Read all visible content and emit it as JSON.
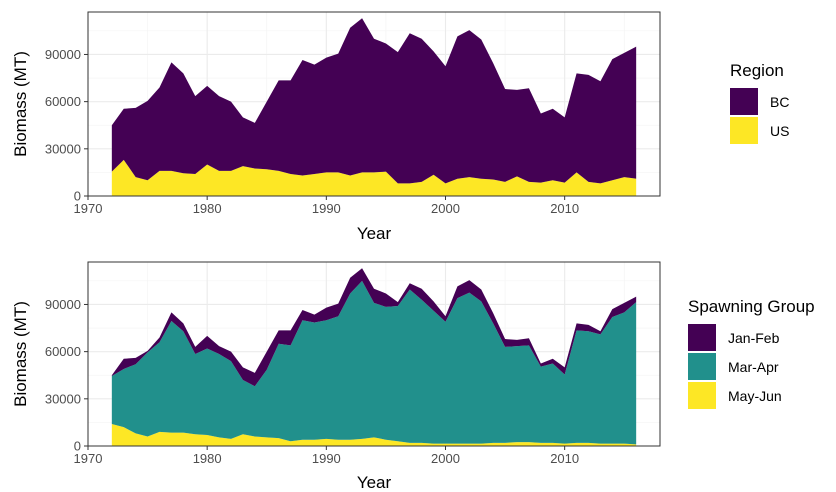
{
  "chart_data": [
    {
      "type": "area",
      "stacked": true,
      "xlabel": "Year",
      "ylabel": "Biomass (MT)",
      "xlim": [
        1970,
        2018
      ],
      "ylim": [
        0,
        117000
      ],
      "x_ticks": [
        1970,
        1980,
        1990,
        2000,
        2010
      ],
      "y_ticks": [
        0,
        30000,
        60000,
        90000
      ],
      "grid": true,
      "legend": {
        "title": "Region",
        "position": "right"
      },
      "x": [
        1972,
        1973,
        1974,
        1975,
        1976,
        1977,
        1978,
        1979,
        1980,
        1981,
        1982,
        1983,
        1984,
        1985,
        1986,
        1987,
        1988,
        1989,
        1990,
        1991,
        1992,
        1993,
        1994,
        1995,
        1996,
        1997,
        1998,
        1999,
        2000,
        2001,
        2002,
        2003,
        2004,
        2005,
        2006,
        2007,
        2008,
        2009,
        2010,
        2011,
        2012,
        2013,
        2014,
        2015,
        2016
      ],
      "series": [
        {
          "name": "US",
          "color": "#FDE725",
          "values": [
            15500,
            23000,
            12000,
            10000,
            16000,
            16000,
            14500,
            14000,
            20000,
            16000,
            16000,
            19000,
            17500,
            17000,
            16000,
            14000,
            13000,
            14000,
            15000,
            15000,
            13000,
            15000,
            15000,
            15500,
            8000,
            8000,
            9000,
            13500,
            8000,
            11000,
            12000,
            11000,
            10500,
            9000,
            12500,
            9000,
            8500,
            10000,
            8500,
            15000,
            9000,
            8000,
            10000,
            12000,
            11000
          ]
        },
        {
          "name": "BC",
          "color": "#440154",
          "values": [
            29500,
            32500,
            44000,
            50500,
            53000,
            69000,
            63500,
            49500,
            50000,
            47500,
            44000,
            31000,
            29000,
            43000,
            57500,
            59500,
            73500,
            69500,
            73000,
            75500,
            94000,
            98000,
            85000,
            81500,
            83500,
            95500,
            91000,
            78500,
            74500,
            90500,
            93500,
            88500,
            74000,
            59000,
            55000,
            59500,
            44000,
            45500,
            41500,
            63000,
            68000,
            65000,
            77000,
            79000,
            84000
          ]
        }
      ]
    },
    {
      "type": "area",
      "stacked": true,
      "xlabel": "Year",
      "ylabel": "Biomass (MT)",
      "xlim": [
        1970,
        2018
      ],
      "ylim": [
        0,
        117000
      ],
      "x_ticks": [
        1970,
        1980,
        1990,
        2000,
        2010
      ],
      "y_ticks": [
        0,
        30000,
        60000,
        90000
      ],
      "grid": true,
      "legend": {
        "title": "Spawning Group",
        "position": "right"
      },
      "x": [
        1972,
        1973,
        1974,
        1975,
        1976,
        1977,
        1978,
        1979,
        1980,
        1981,
        1982,
        1983,
        1984,
        1985,
        1986,
        1987,
        1988,
        1989,
        1990,
        1991,
        1992,
        1993,
        1994,
        1995,
        1996,
        1997,
        1998,
        1999,
        2000,
        2001,
        2002,
        2003,
        2004,
        2005,
        2006,
        2007,
        2008,
        2009,
        2010,
        2011,
        2012,
        2013,
        2014,
        2015,
        2016
      ],
      "series": [
        {
          "name": "May-Jun",
          "color": "#FDE725",
          "values": [
            14000,
            12000,
            8000,
            6000,
            9000,
            8500,
            8500,
            7500,
            7000,
            5500,
            4500,
            7500,
            6000,
            5500,
            5000,
            3000,
            4000,
            4000,
            4500,
            4000,
            4000,
            4500,
            5500,
            4000,
            3000,
            2000,
            2000,
            1500,
            1500,
            1500,
            1500,
            1500,
            2000,
            2000,
            2500,
            2500,
            2000,
            2000,
            1500,
            2000,
            2000,
            1500,
            1500,
            1500,
            1000
          ]
        },
        {
          "name": "Mar-Apr",
          "color": "#21908C",
          "values": [
            30500,
            37000,
            44000,
            53500,
            57000,
            71000,
            64500,
            51000,
            55000,
            53000,
            49500,
            34500,
            32000,
            43000,
            60000,
            61000,
            76000,
            74500,
            75500,
            78500,
            93000,
            100500,
            85500,
            84500,
            86000,
            97500,
            91000,
            84500,
            77500,
            92500,
            96000,
            90500,
            76000,
            61000,
            61000,
            61500,
            48500,
            50500,
            44000,
            71500,
            71000,
            69500,
            80500,
            83500,
            90500
          ]
        },
        {
          "name": "Jan-Feb",
          "color": "#440154",
          "values": [
            500,
            6500,
            4000,
            1000,
            3000,
            5500,
            5000,
            4500,
            8000,
            5000,
            6000,
            8000,
            8500,
            11500,
            8500,
            9500,
            6500,
            5000,
            8000,
            8000,
            10000,
            8000,
            9000,
            8500,
            2500,
            4000,
            7000,
            6000,
            3500,
            7500,
            8000,
            7500,
            6500,
            5000,
            4000,
            4500,
            2000,
            3000,
            4500,
            4500,
            4000,
            2000,
            5000,
            6000,
            3500
          ]
        }
      ]
    }
  ]
}
